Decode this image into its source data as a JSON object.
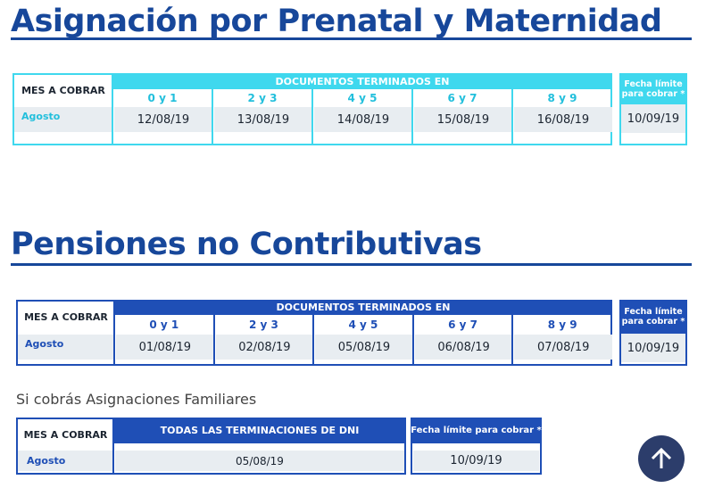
{
  "sections": [
    {
      "title": "Asignación por Prenatal y Maternidad",
      "color": "#3fd8ee",
      "label_color": "#22bfdc",
      "table": {
        "month_header": "MES A COBRAR",
        "group_header": "DOCUMENTOS TERMINADOS EN",
        "columns": [
          "0 y 1",
          "2 y 3",
          "4 y 5",
          "6 y 7",
          "8 y 9"
        ],
        "month": "Agosto",
        "dates": [
          "12/08/19",
          "13/08/19",
          "14/08/19",
          "15/08/19",
          "16/08/19"
        ],
        "deadline_header": "Fecha límite para cobrar *",
        "deadline": "10/09/19"
      }
    },
    {
      "title": "Pensiones no Contributivas",
      "color": "#1f4fb6",
      "label_color": "#1f4fb6",
      "table": {
        "month_header": "MES A COBRAR",
        "group_header": "DOCUMENTOS TERMINADOS EN",
        "columns": [
          "0 y 1",
          "2 y 3",
          "4 y 5",
          "6 y 7",
          "8 y 9"
        ],
        "month": "Agosto",
        "dates": [
          "01/08/19",
          "02/08/19",
          "05/08/19",
          "06/08/19",
          "07/08/19"
        ],
        "deadline_header": "Fecha límite para cobrar *",
        "deadline": "10/09/19"
      }
    }
  ],
  "familiares": {
    "subtitle": "Si cobrás Asignaciones Familiares",
    "color": "#1f4fb6",
    "month_header": "MES A COBRAR",
    "group_header": "TODAS LAS TERMINACIONES DE DNI",
    "month": "Agosto",
    "date": "05/08/19",
    "deadline_header": "Fecha límite para cobrar *",
    "deadline": "10/09/19"
  }
}
